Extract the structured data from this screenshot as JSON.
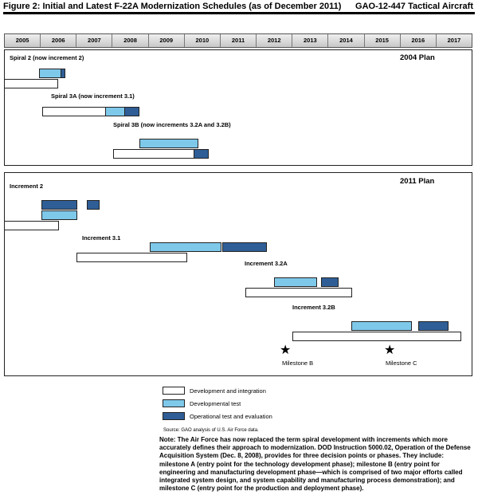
{
  "header": {
    "title": "Figure 2: Initial and Latest F-22A Modernization Schedules (as of December 2011)",
    "report": "GAO-12-447  Tactical Aircraft"
  },
  "years": [
    "2005",
    "2006",
    "2007",
    "2008",
    "2009",
    "2010",
    "2011",
    "2012",
    "2013",
    "2014",
    "2015",
    "2016",
    "2017"
  ],
  "plan2004": {
    "heading": "2004 Plan",
    "spiral2": "Spiral 2 (now increment 2)",
    "spiral3a": "Spiral 3A (now increment 3.1)",
    "spiral3b": "Spiral 3B (now increments 3.2A and 3.2B)"
  },
  "plan2011": {
    "heading": "2011 Plan",
    "increment2": "Increment 2",
    "increment31": "Increment 3.1",
    "increment32a": "Increment 3.2A",
    "increment32b": "Increment 3.2B",
    "milestone_b": "Milestone B",
    "milestone_c": "Milestone C"
  },
  "legend": {
    "dev": "Development and integration",
    "test": "Developmental test",
    "ote": "Operational test and evaluation"
  },
  "colors": {
    "dev": "#ffffff",
    "test": "#7ec8ea",
    "ote": "#2f5e96"
  },
  "source": "Source: GAO analysis of U.S. Air Force data.",
  "note": "Note: The Air Force has now replaced the term spiral development with increments which more accurately defines their approach to modernization. DOD Instruction 5000.02, Operation of the Defense Acquisition System (Dec. 8, 2008), provides for three decision points or phases. They include: milestone A (entry point for the technology development phase); milestone B (entry point for engineering and manufacturing development phase—which is comprised of two major efforts called integrated system design, and system capability and manufacturing process demonstration); and milestone C (entry point for the production and deployment phase)."
}
